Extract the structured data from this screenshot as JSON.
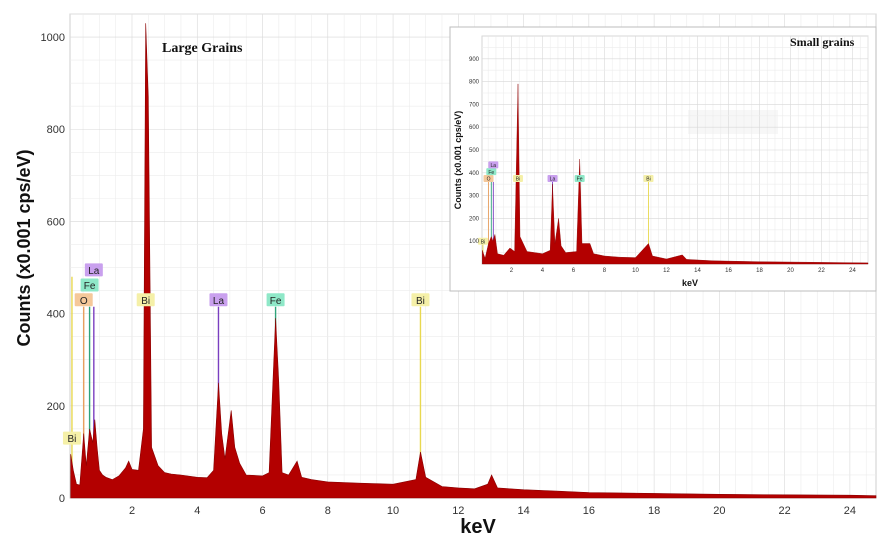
{
  "chart_data": [
    {
      "type": "area",
      "annotation": "Large Grains",
      "xlabel": "keV",
      "ylabel": "Counts (x0.001 cps/eV)",
      "xlim": [
        0.1,
        24.8
      ],
      "ylim": [
        0,
        1050
      ],
      "x_ticks": [
        "2",
        "4",
        "6",
        "8",
        "10",
        "12",
        "14",
        "16",
        "18",
        "20",
        "22",
        "24"
      ],
      "y_ticks": [
        "0",
        "200",
        "400",
        "600",
        "800",
        "1000"
      ],
      "grid": true,
      "colors": {
        "spectrum": "#b30000",
        "O": "#f5c89a",
        "Fe": "#8fe8c8",
        "La": "#c9a0ee",
        "Bi": "#f5f0a8"
      },
      "spectrum": [
        [
          0.12,
          95
        ],
        [
          0.2,
          60
        ],
        [
          0.3,
          30
        ],
        [
          0.4,
          28
        ],
        [
          0.52,
          140
        ],
        [
          0.6,
          70
        ],
        [
          0.7,
          150
        ],
        [
          0.8,
          120
        ],
        [
          0.86,
          170
        ],
        [
          0.93,
          110
        ],
        [
          1.0,
          60
        ],
        [
          1.1,
          50
        ],
        [
          1.2,
          45
        ],
        [
          1.4,
          40
        ],
        [
          1.6,
          48
        ],
        [
          1.8,
          65
        ],
        [
          1.9,
          80
        ],
        [
          2.0,
          62
        ],
        [
          2.2,
          60
        ],
        [
          2.35,
          150
        ],
        [
          2.42,
          1030
        ],
        [
          2.5,
          870
        ],
        [
          2.6,
          110
        ],
        [
          2.8,
          70
        ],
        [
          3.0,
          55
        ],
        [
          3.2,
          52
        ],
        [
          3.5,
          50
        ],
        [
          4.0,
          45
        ],
        [
          4.3,
          44
        ],
        [
          4.5,
          60
        ],
        [
          4.65,
          250
        ],
        [
          4.75,
          140
        ],
        [
          4.85,
          85
        ],
        [
          5.04,
          190
        ],
        [
          5.15,
          110
        ],
        [
          5.3,
          75
        ],
        [
          5.5,
          50
        ],
        [
          6.0,
          48
        ],
        [
          6.2,
          55
        ],
        [
          6.4,
          390
        ],
        [
          6.5,
          250
        ],
        [
          6.6,
          55
        ],
        [
          6.8,
          50
        ],
        [
          7.06,
          80
        ],
        [
          7.2,
          45
        ],
        [
          7.5,
          40
        ],
        [
          8.0,
          35
        ],
        [
          9.0,
          32
        ],
        [
          10.0,
          30
        ],
        [
          10.7,
          40
        ],
        [
          10.84,
          100
        ],
        [
          11.0,
          45
        ],
        [
          11.5,
          25
        ],
        [
          12.0,
          22
        ],
        [
          12.5,
          20
        ],
        [
          12.9,
          30
        ],
        [
          13.02,
          50
        ],
        [
          13.2,
          22
        ],
        [
          14.0,
          18
        ],
        [
          15.0,
          15
        ],
        [
          16.0,
          12
        ],
        [
          18.0,
          10
        ],
        [
          20.0,
          8
        ],
        [
          22.0,
          7
        ],
        [
          24.0,
          6
        ],
        [
          24.8,
          5
        ]
      ],
      "element_lines": [
        {
          "symbol": "Bi",
          "x": 0.16,
          "height": 480,
          "line_color": "#e8d850",
          "tag_y": 130
        },
        {
          "symbol": "O",
          "x": 0.52,
          "height": 415,
          "line_color": "#e8a060",
          "tag_y": 430
        },
        {
          "symbol": "Fe",
          "x": 0.7,
          "height": 415,
          "line_color": "#2fa37a",
          "tag_y": 462
        },
        {
          "symbol": "La",
          "x": 0.83,
          "height": 415,
          "line_color": "#7a3fc0",
          "tag_y": 495
        },
        {
          "symbol": "Bi",
          "x": 2.42,
          "height": 415,
          "line_color": "#e8d850",
          "tag_y": 430
        },
        {
          "symbol": "La",
          "x": 4.65,
          "height": 415,
          "line_color": "#7a3fc0",
          "tag_y": 430
        },
        {
          "symbol": "Fe",
          "x": 6.4,
          "height": 415,
          "line_color": "#2fa37a",
          "tag_y": 430
        },
        {
          "symbol": "Bi",
          "x": 10.84,
          "height": 415,
          "line_color": "#e8d850",
          "tag_y": 430
        }
      ]
    },
    {
      "type": "area",
      "annotation": "Small grains",
      "xlabel": "keV",
      "ylabel": "Counts (x0.001 cps/eV)",
      "xlim": [
        0.1,
        25
      ],
      "ylim": [
        0,
        1000
      ],
      "x_ticks": [
        "2",
        "4",
        "6",
        "8",
        "10",
        "12",
        "14",
        "16",
        "18",
        "20",
        "22",
        "24"
      ],
      "y_ticks": [
        "100",
        "200",
        "300",
        "400",
        "500",
        "600",
        "700",
        "800",
        "900"
      ],
      "grid": true,
      "colors": {
        "spectrum": "#b30000",
        "O": "#f5c89a",
        "Fe": "#8fe8c8",
        "La": "#c9a0ee",
        "Bi": "#f5f0a8"
      },
      "spectrum": [
        [
          0.12,
          60
        ],
        [
          0.3,
          25
        ],
        [
          0.52,
          90
        ],
        [
          0.7,
          120
        ],
        [
          0.8,
          100
        ],
        [
          0.93,
          130
        ],
        [
          1.1,
          45
        ],
        [
          1.5,
          38
        ],
        [
          1.9,
          70
        ],
        [
          2.2,
          55
        ],
        [
          2.42,
          790
        ],
        [
          2.55,
          120
        ],
        [
          3.0,
          55
        ],
        [
          3.5,
          50
        ],
        [
          4.0,
          45
        ],
        [
          4.5,
          60
        ],
        [
          4.65,
          350
        ],
        [
          4.8,
          90
        ],
        [
          5.04,
          200
        ],
        [
          5.2,
          80
        ],
        [
          5.5,
          50
        ],
        [
          6.2,
          55
        ],
        [
          6.4,
          460
        ],
        [
          6.55,
          90
        ],
        [
          7.06,
          90
        ],
        [
          7.3,
          45
        ],
        [
          8.0,
          35
        ],
        [
          9.0,
          30
        ],
        [
          10.0,
          28
        ],
        [
          10.84,
          90
        ],
        [
          11.1,
          35
        ],
        [
          12.0,
          22
        ],
        [
          13.02,
          40
        ],
        [
          13.3,
          20
        ],
        [
          15.0,
          14
        ],
        [
          18.0,
          10
        ],
        [
          21.0,
          8
        ],
        [
          25.0,
          5
        ]
      ],
      "element_lines": [
        {
          "symbol": "Bi",
          "x": 0.16,
          "height": 100,
          "line_color": "#e8d850",
          "tag_y": 100
        },
        {
          "symbol": "O",
          "x": 0.52,
          "height": 360,
          "line_color": "#e8a060",
          "tag_y": 375
        },
        {
          "symbol": "Fe",
          "x": 0.7,
          "height": 360,
          "line_color": "#2fa37a",
          "tag_y": 405
        },
        {
          "symbol": "La",
          "x": 0.83,
          "height": 360,
          "line_color": "#7a3fc0",
          "tag_y": 435
        },
        {
          "symbol": "Bi",
          "x": 2.42,
          "height": 360,
          "line_color": "#e8d850",
          "tag_y": 375
        },
        {
          "symbol": "La",
          "x": 4.65,
          "height": 360,
          "line_color": "#7a3fc0",
          "tag_y": 375
        },
        {
          "symbol": "Fe",
          "x": 6.4,
          "height": 360,
          "line_color": "#2fa37a",
          "tag_y": 375
        },
        {
          "symbol": "Bi",
          "x": 10.84,
          "height": 360,
          "line_color": "#e8d850",
          "tag_y": 375
        }
      ]
    }
  ]
}
